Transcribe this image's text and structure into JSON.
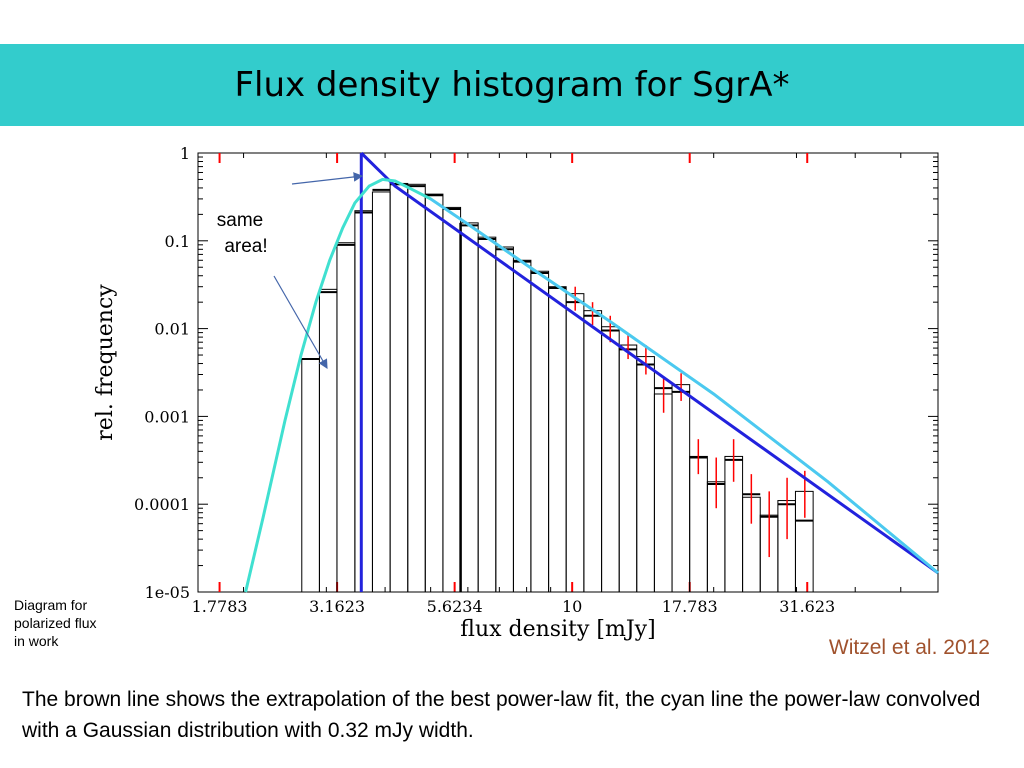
{
  "slide": {
    "title": "Flux density histogram for SgrA*",
    "side_note": "Diagram for\npolarized flux\nin work",
    "citation": "Witzel et al. 2012",
    "caption": "The brown line shows the extrapolation of the best power-law fit, the cyan line the power-law convolved with a Gaussian distribution with  0.32 mJy width."
  },
  "colors": {
    "title_bar": "#33cccc",
    "bars": "#000000",
    "error_bars": "#ff0000",
    "power_law": "#2222dd",
    "gauss_fit": "#40e0d0",
    "power_law_light": "#4fc3f7",
    "annotation": "#4466aa",
    "citation": "#a0522d"
  },
  "chart_data": {
    "type": "bar",
    "xlabel": "flux density [mJy]",
    "ylabel": "rel. frequency",
    "x_scale": "log",
    "y_scale": "log",
    "xlim": [
      1.6,
      60
    ],
    "ylim": [
      1e-05,
      1
    ],
    "x_ticks": [
      "1.7783",
      "3.1623",
      "5.6234",
      "10",
      "17.783",
      "31.623"
    ],
    "y_ticks": [
      "1",
      "0.1",
      "0.01",
      "0.001",
      "0.0001",
      "1e-05"
    ],
    "annotation": "same\narea!",
    "bins": [
      {
        "x0": 2.66,
        "x1": 2.9,
        "value": 0.0045
      },
      {
        "x0": 2.9,
        "x1": 3.16,
        "value": 0.028
      },
      {
        "x0": 3.16,
        "x1": 3.45,
        "value": 0.095
      },
      {
        "x0": 3.45,
        "x1": 3.76,
        "value": 0.22
      },
      {
        "x0": 3.76,
        "x1": 4.1,
        "value": 0.36
      },
      {
        "x0": 4.1,
        "x1": 4.47,
        "value": 0.45
      },
      {
        "x0": 4.47,
        "x1": 4.87,
        "value": 0.44
      },
      {
        "x0": 4.87,
        "x1": 5.31,
        "value": 0.34
      },
      {
        "x0": 5.31,
        "x1": 5.79,
        "value": 0.24
      },
      {
        "x0": 5.79,
        "x1": 6.31,
        "value": 0.16
      },
      {
        "x0": 6.31,
        "x1": 6.88,
        "value": 0.11
      },
      {
        "x0": 6.88,
        "x1": 7.5,
        "value": 0.085
      },
      {
        "x0": 7.5,
        "x1": 8.17,
        "value": 0.06
      },
      {
        "x0": 8.17,
        "x1": 8.91,
        "value": 0.045
      },
      {
        "x0": 8.91,
        "x1": 9.71,
        "value": 0.03
      },
      {
        "x0": 9.71,
        "x1": 10.59,
        "value": 0.025
      },
      {
        "x0": 10.59,
        "x1": 11.55,
        "value": 0.016
      },
      {
        "x0": 11.55,
        "x1": 12.59,
        "value": 0.0105
      },
      {
        "x0": 12.59,
        "x1": 13.72,
        "value": 0.0065
      },
      {
        "x0": 13.72,
        "x1": 14.96,
        "value": 0.0048
      },
      {
        "x0": 14.96,
        "x1": 16.31,
        "value": 0.0018
      },
      {
        "x0": 16.31,
        "x1": 17.78,
        "value": 0.0023
      },
      {
        "x0": 17.78,
        "x1": 19.39,
        "value": 0.00035
      },
      {
        "x0": 19.39,
        "x1": 21.13,
        "value": 0.00018
      },
      {
        "x0": 21.13,
        "x1": 23.04,
        "value": 0.00035
      },
      {
        "x0": 23.04,
        "x1": 25.12,
        "value": 0.00012
      },
      {
        "x0": 25.12,
        "x1": 27.39,
        "value": 7.5e-05
      },
      {
        "x0": 27.39,
        "x1": 29.85,
        "value": 0.00011
      },
      {
        "x0": 29.85,
        "x1": 32.55,
        "value": 0.00014
      }
    ],
    "bin_secondary": [
      {
        "x0": 2.66,
        "x1": 2.9,
        "value": 0.0045
      },
      {
        "x0": 2.9,
        "x1": 3.16,
        "value": 0.026
      },
      {
        "x0": 3.16,
        "x1": 3.45,
        "value": 0.09
      },
      {
        "x0": 3.45,
        "x1": 3.76,
        "value": 0.21
      },
      {
        "x0": 3.76,
        "x1": 4.1,
        "value": 0.38
      },
      {
        "x0": 4.1,
        "x1": 4.47,
        "value": 0.44
      },
      {
        "x0": 4.47,
        "x1": 4.87,
        "value": 0.42
      },
      {
        "x0": 4.87,
        "x1": 5.31,
        "value": 0.33
      },
      {
        "x0": 5.31,
        "x1": 5.79,
        "value": 0.23
      },
      {
        "x0": 5.79,
        "x1": 6.31,
        "value": 0.15
      },
      {
        "x0": 6.31,
        "x1": 6.88,
        "value": 0.105
      },
      {
        "x0": 6.88,
        "x1": 7.5,
        "value": 0.08
      },
      {
        "x0": 7.5,
        "x1": 8.17,
        "value": 0.058
      },
      {
        "x0": 8.17,
        "x1": 8.91,
        "value": 0.043
      },
      {
        "x0": 8.91,
        "x1": 9.71,
        "value": 0.029
      },
      {
        "x0": 9.71,
        "x1": 10.59,
        "value": 0.02
      },
      {
        "x0": 10.59,
        "x1": 11.55,
        "value": 0.014
      },
      {
        "x0": 11.55,
        "x1": 12.59,
        "value": 0.0095
      },
      {
        "x0": 12.59,
        "x1": 13.72,
        "value": 0.0058
      },
      {
        "x0": 13.72,
        "x1": 14.96,
        "value": 0.0039
      },
      {
        "x0": 14.96,
        "x1": 16.31,
        "value": 0.0021
      },
      {
        "x0": 16.31,
        "x1": 17.78,
        "value": 0.0019
      },
      {
        "x0": 17.78,
        "x1": 19.39,
        "value": 0.00034
      },
      {
        "x0": 19.39,
        "x1": 21.13,
        "value": 0.00017
      },
      {
        "x0": 21.13,
        "x1": 23.04,
        "value": 0.00032
      },
      {
        "x0": 23.04,
        "x1": 25.12,
        "value": 0.00013
      },
      {
        "x0": 25.12,
        "x1": 27.39,
        "value": 7.2e-05
      },
      {
        "x0": 27.39,
        "x1": 29.85,
        "value": 0.0001
      },
      {
        "x0": 29.85,
        "x1": 32.55,
        "value": 6.5e-05
      }
    ],
    "error_bars": [
      {
        "x": 10.15,
        "low": 0.016,
        "high": 0.03
      },
      {
        "x": 11.05,
        "low": 0.011,
        "high": 0.02
      },
      {
        "x": 12.05,
        "low": 0.007,
        "high": 0.014
      },
      {
        "x": 13.15,
        "low": 0.0045,
        "high": 0.0085
      },
      {
        "x": 14.35,
        "low": 0.003,
        "high": 0.0065
      },
      {
        "x": 15.65,
        "low": 0.0011,
        "high": 0.0028
      },
      {
        "x": 17.05,
        "low": 0.0015,
        "high": 0.0031
      },
      {
        "x": 18.55,
        "low": 0.00022,
        "high": 0.00055
      },
      {
        "x": 20.25,
        "low": 9e-05,
        "high": 0.00034
      },
      {
        "x": 22.05,
        "low": 0.00018,
        "high": 0.00055
      },
      {
        "x": 24.05,
        "low": 6e-05,
        "high": 0.00022
      },
      {
        "x": 26.25,
        "low": 2.5e-05,
        "high": 0.00014
      },
      {
        "x": 28.65,
        "low": 4e-05,
        "high": 0.0002
      },
      {
        "x": 31.25,
        "low": 7e-05,
        "high": 0.00024
      }
    ],
    "power_law_fit": {
      "x_cut": 3.56,
      "x": [
        3.56,
        4.2,
        60
      ],
      "y": [
        1,
        0.42,
        1.65e-05
      ]
    },
    "convolved_fit": {
      "x": [
        2.02,
        2.2,
        2.45,
        2.65,
        2.85,
        3.05,
        3.25,
        3.45,
        3.7,
        3.95,
        4.2,
        4.5,
        5,
        6,
        8,
        12,
        20,
        35,
        60
      ],
      "y": [
        1e-05,
        7e-05,
        0.0009,
        0.005,
        0.02,
        0.06,
        0.14,
        0.27,
        0.42,
        0.5,
        0.48,
        0.4,
        0.3,
        0.155,
        0.053,
        0.0122,
        0.0018,
        0.00018,
        1.65e-05
      ]
    },
    "top_tick_marks": [
      1.7783,
      3.1623,
      5.6234,
      10,
      17.783,
      31.623
    ]
  }
}
